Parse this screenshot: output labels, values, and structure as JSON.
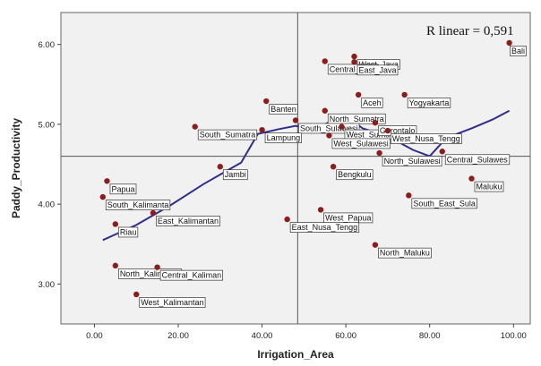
{
  "chart_data": {
    "type": "scatter",
    "xlabel": "Irrigation_Area",
    "ylabel": "Paddy_Productivity",
    "xlim": [
      -8,
      104
    ],
    "ylim": [
      2.5,
      6.4
    ],
    "x_ticks": [
      "0.00",
      "20.00",
      "40.00",
      "60.00",
      "80.00",
      "100.00"
    ],
    "x_tick_values": [
      0,
      20,
      40,
      60,
      80,
      100
    ],
    "y_ticks": [
      "3.00",
      "4.00",
      "5.00",
      "6.00"
    ],
    "y_tick_values": [
      3,
      4,
      5,
      6
    ],
    "reference_lines": {
      "x": 48.5,
      "y": 4.6
    },
    "annotation": "R linear = 0,591",
    "grid": false,
    "colors": {
      "plot_bg": "#f1f1f1",
      "point": "#8b1d1d",
      "fit_line": "#2e2f8a",
      "ref_line": "#555555"
    },
    "points": [
      {
        "label": "Bali",
        "x": 99,
        "y": 6.02
      },
      {
        "label": "West_Java",
        "x": 62,
        "y": 5.85
      },
      {
        "label": "Central_Java",
        "x": 55,
        "y": 5.79
      },
      {
        "label": "East_Java",
        "x": 62,
        "y": 5.78
      },
      {
        "label": "Aceh",
        "x": 63,
        "y": 5.37
      },
      {
        "label": "Yogyakarta",
        "x": 74,
        "y": 5.37
      },
      {
        "label": "Banten",
        "x": 41,
        "y": 5.29
      },
      {
        "label": "North_Sumatra",
        "x": 55,
        "y": 5.17
      },
      {
        "label": "South_Sulawesi",
        "x": 48,
        "y": 5.05
      },
      {
        "label": "West_Sumatra",
        "x": 59,
        "y": 4.97
      },
      {
        "label": "Gorontalo",
        "x": 67,
        "y": 5.02
      },
      {
        "label": "South_Sumatra",
        "x": 24,
        "y": 4.97
      },
      {
        "label": "Lampung",
        "x": 40,
        "y": 4.93
      },
      {
        "label": "West_Nusa_Tengg",
        "x": 70,
        "y": 4.92
      },
      {
        "label": "West_Sulawesi",
        "x": 56,
        "y": 4.86
      },
      {
        "label": "North_Sulawesi",
        "x": 68,
        "y": 4.64
      },
      {
        "label": "Central_Sulawes",
        "x": 83,
        "y": 4.66
      },
      {
        "label": "Jambi",
        "x": 30,
        "y": 4.47
      },
      {
        "label": "Bengkulu",
        "x": 57,
        "y": 4.47
      },
      {
        "label": "Papua",
        "x": 3,
        "y": 4.29
      },
      {
        "label": "Maluku",
        "x": 90,
        "y": 4.32
      },
      {
        "label": "South_Kalimanta",
        "x": 2,
        "y": 4.09
      },
      {
        "label": "South_East_Sula",
        "x": 75,
        "y": 4.11
      },
      {
        "label": "West_Papua",
        "x": 54,
        "y": 3.93
      },
      {
        "label": "East_Kalimantan",
        "x": 14,
        "y": 3.89
      },
      {
        "label": "East_Nusa_Tengg",
        "x": 46,
        "y": 3.81
      },
      {
        "label": "Riau",
        "x": 5,
        "y": 3.75
      },
      {
        "label": "North_Maluku",
        "x": 67,
        "y": 3.49
      },
      {
        "label": "North_Kalimanta",
        "x": 5,
        "y": 3.23
      },
      {
        "label": "Central_Kaliman",
        "x": 15,
        "y": 3.21
      },
      {
        "label": "West_Kalimantan",
        "x": 10,
        "y": 2.87
      }
    ],
    "fit_line": [
      {
        "x": 2,
        "y": 3.55
      },
      {
        "x": 10,
        "y": 3.74
      },
      {
        "x": 18,
        "y": 3.98
      },
      {
        "x": 26,
        "y": 4.25
      },
      {
        "x": 32,
        "y": 4.43
      },
      {
        "x": 35,
        "y": 4.52
      },
      {
        "x": 39,
        "y": 4.88
      },
      {
        "x": 44,
        "y": 4.94
      },
      {
        "x": 48,
        "y": 4.98
      },
      {
        "x": 52,
        "y": 4.93
      },
      {
        "x": 57,
        "y": 5.05
      },
      {
        "x": 60,
        "y": 5.1
      },
      {
        "x": 64,
        "y": 4.95
      },
      {
        "x": 70,
        "y": 4.85
      },
      {
        "x": 76,
        "y": 4.68
      },
      {
        "x": 80,
        "y": 4.6
      },
      {
        "x": 84,
        "y": 4.83
      },
      {
        "x": 90,
        "y": 4.95
      },
      {
        "x": 95,
        "y": 5.06
      },
      {
        "x": 99,
        "y": 5.17
      }
    ]
  }
}
